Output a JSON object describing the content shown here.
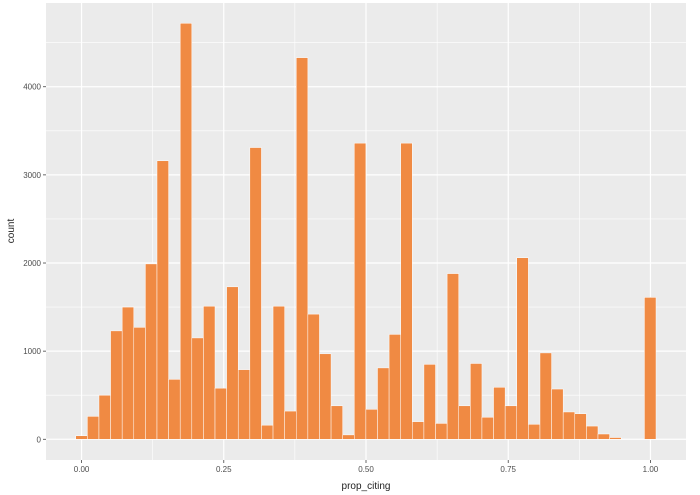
{
  "chart_data": {
    "type": "bar",
    "xlabel": "prop_citing",
    "ylabel": "count",
    "x_ticks": [
      0.0,
      0.25,
      0.5,
      0.75,
      1.0
    ],
    "x_tick_labels": [
      "0.00",
      "0.25",
      "0.50",
      "0.75",
      "1.00"
    ],
    "y_ticks": [
      0,
      1000,
      2000,
      3000,
      4000
    ],
    "y_tick_labels": [
      "0",
      "1000",
      "2000",
      "3000",
      "4000"
    ],
    "xlim": [
      -0.0625,
      1.0625
    ],
    "ylim": [
      -235,
      4950
    ],
    "bin_width": 0.0204,
    "bin_centers": [
      0.0,
      0.0204,
      0.0408,
      0.0612,
      0.0816,
      0.102,
      0.1224,
      0.1428,
      0.1632,
      0.1836,
      0.204,
      0.2244,
      0.2448,
      0.2652,
      0.2856,
      0.306,
      0.3264,
      0.3468,
      0.3672,
      0.3876,
      0.408,
      0.4284,
      0.4488,
      0.4692,
      0.4896,
      0.51,
      0.5304,
      0.5508,
      0.5712,
      0.5916,
      0.612,
      0.6324,
      0.6528,
      0.6732,
      0.6936,
      0.714,
      0.7344,
      0.7548,
      0.7752,
      0.7956,
      0.816,
      0.8364,
      0.8568,
      0.8772,
      0.8976,
      0.918,
      0.9384,
      0.9588,
      0.9792,
      0.9996
    ],
    "values": [
      40,
      260,
      500,
      1230,
      1500,
      1270,
      1990,
      3160,
      680,
      4720,
      1150,
      1510,
      580,
      1730,
      790,
      3310,
      160,
      1510,
      320,
      4330,
      1420,
      970,
      380,
      50,
      3360,
      340,
      810,
      1190,
      3360,
      200,
      850,
      180,
      1880,
      380,
      860,
      250,
      590,
      380,
      2060,
      170,
      980,
      570,
      310,
      290,
      150,
      60,
      20,
      0,
      0,
      1610
    ],
    "bar_color": "#f08a43",
    "bar_edge_color": "#ffffff",
    "panel_color": "#ebebeb",
    "grid_color": "#ffffff",
    "grid": true,
    "legend": false
  }
}
